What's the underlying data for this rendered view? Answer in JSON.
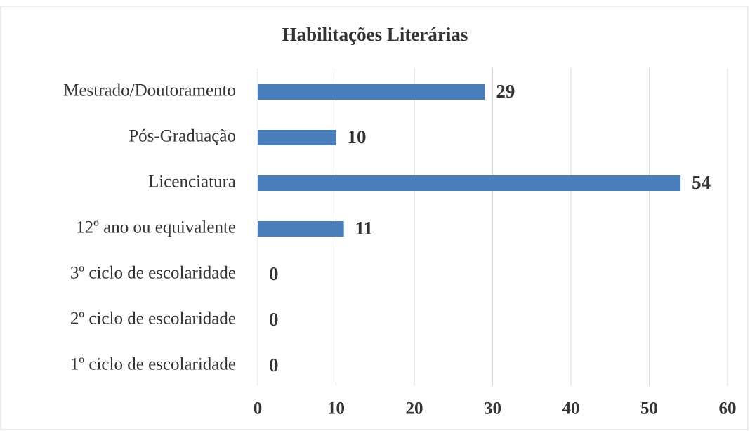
{
  "chart_data": {
    "type": "bar",
    "orientation": "horizontal",
    "title": "Habilitações Literárias",
    "categories": [
      "Mestrado/Doutoramento",
      "Pós-Graduação",
      "Licenciatura",
      "12º ano ou equivalente",
      "3º ciclo de escolaridade",
      "2º ciclo de escolaridade",
      "1º ciclo de escolaridade"
    ],
    "values": [
      29,
      10,
      54,
      11,
      0,
      0,
      0
    ],
    "color": "#4a7ebb",
    "xlim": [
      0,
      60
    ],
    "xticks": [
      0,
      10,
      20,
      30,
      40,
      50,
      60
    ],
    "grid": true
  }
}
